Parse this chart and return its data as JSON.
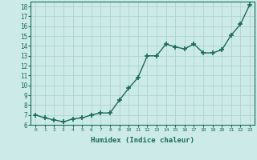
{
  "x": [
    0,
    1,
    2,
    3,
    4,
    5,
    6,
    7,
    8,
    9,
    10,
    11,
    12,
    13,
    14,
    15,
    16,
    17,
    18,
    19,
    20,
    21,
    22,
    23
  ],
  "y": [
    7.0,
    6.7,
    6.5,
    6.3,
    6.6,
    6.7,
    7.0,
    7.2,
    7.2,
    8.5,
    9.7,
    10.8,
    13.0,
    13.0,
    14.2,
    13.9,
    13.7,
    14.2,
    13.3,
    13.3,
    13.6,
    15.1,
    16.2,
    18.2
  ],
  "line_color": "#1a6b5a",
  "marker": "+",
  "marker_size": 4,
  "bg_color": "#cceae7",
  "grid_color": "#b0d4d0",
  "xlabel": "Humidex (Indice chaleur)",
  "xlim": [
    -0.5,
    23.5
  ],
  "ylim": [
    6,
    18.5
  ],
  "yticks": [
    6,
    7,
    8,
    9,
    10,
    11,
    12,
    13,
    14,
    15,
    16,
    17,
    18
  ],
  "xticks": [
    0,
    1,
    2,
    3,
    4,
    5,
    6,
    7,
    8,
    9,
    10,
    11,
    12,
    13,
    14,
    15,
    16,
    17,
    18,
    19,
    20,
    21,
    22,
    23
  ],
  "font_family": "monospace"
}
